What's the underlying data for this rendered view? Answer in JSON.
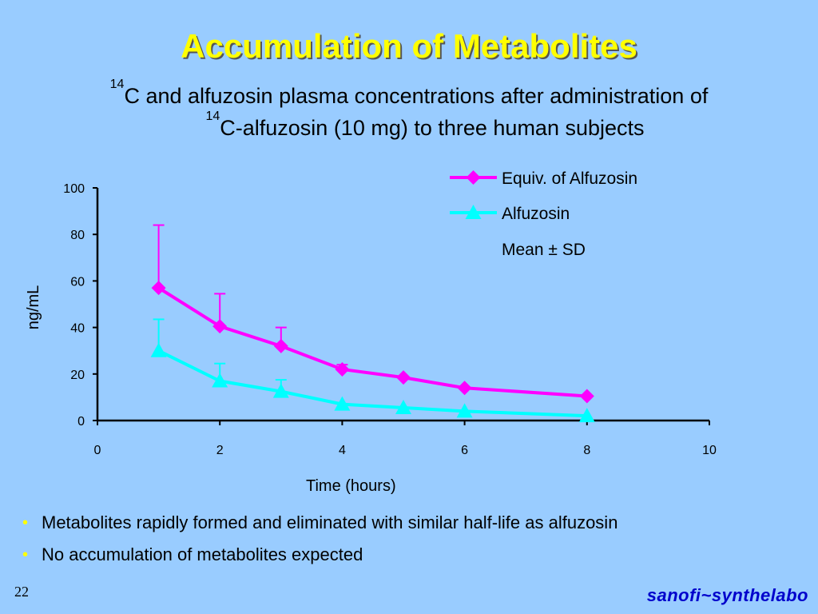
{
  "slide": {
    "title": "Accumulation of Metabolites",
    "subtitle_line1_sup": "14",
    "subtitle_line1_text": "C and alfuzosin plasma concentrations after administration of",
    "subtitle_line2_sup": "14",
    "subtitle_line2_text": "C-alfuzosin (10 mg) to three human subjects",
    "bullets": [
      "Metabolites rapidly formed and eliminated with similar half-life as alfuzosin",
      "No accumulation of metabolites expected"
    ],
    "page_number": "22",
    "logo_text": "sanofi~synthelabo"
  },
  "chart_data": {
    "type": "line",
    "xlabel": "Time (hours)",
    "ylabel": "ng/mL",
    "xlim": [
      0,
      10
    ],
    "ylim": [
      0,
      100
    ],
    "xticks": [
      0,
      2,
      4,
      6,
      8,
      10
    ],
    "yticks": [
      0,
      20,
      40,
      60,
      80,
      100
    ],
    "grid": false,
    "legend_position": "top-right",
    "legend_note": "Mean ± SD",
    "series": [
      {
        "name": "Equiv. of Alfuzosin",
        "color": "#ff00ff",
        "marker": "diamond",
        "x": [
          1,
          2,
          3,
          4,
          5,
          6,
          8
        ],
        "y": [
          57,
          40.5,
          32,
          22,
          18.5,
          14,
          10.5
        ],
        "sd": [
          27,
          14,
          8,
          2,
          0,
          0,
          0
        ]
      },
      {
        "name": "Alfuzosin",
        "color": "#00ffff",
        "marker": "triangle",
        "x": [
          1,
          2,
          3,
          4,
          5,
          6,
          8
        ],
        "y": [
          30,
          17,
          12.5,
          7,
          5.5,
          4,
          2
        ],
        "sd": [
          13.5,
          7.5,
          5,
          0,
          0,
          0,
          0
        ]
      }
    ]
  }
}
